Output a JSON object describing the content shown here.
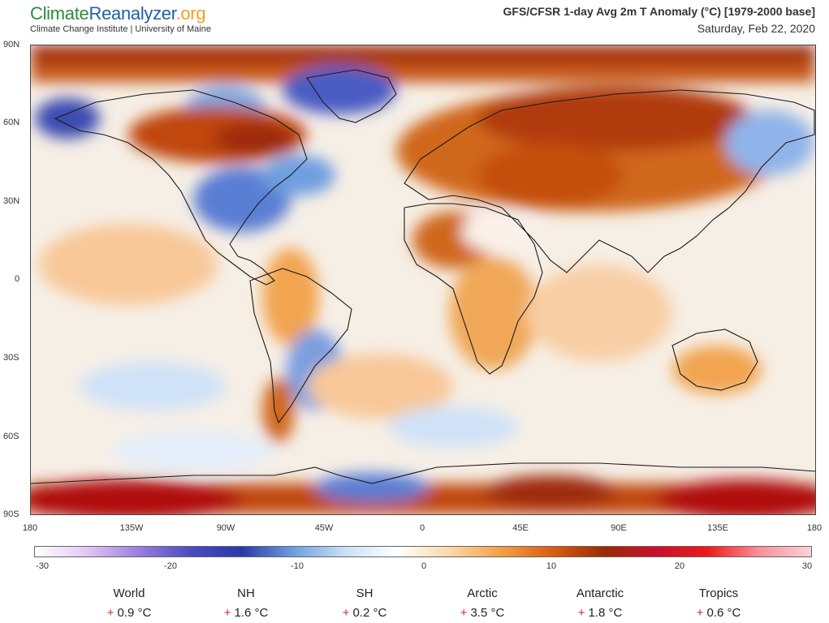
{
  "header": {
    "logo": {
      "part1": "Climate",
      "part2": "Reanalyzer",
      "part3": ".org"
    },
    "tagline": "Climate Change Institute | University of Maine",
    "title": "GFS/CFSR 1-day Avg 2m T Anomaly (°C) [1979-2000 base]",
    "date": "Saturday, Feb 22, 2020"
  },
  "map": {
    "lat_labels": [
      "90N",
      "60N",
      "30N",
      "0",
      "30S",
      "60S",
      "90S"
    ],
    "lon_labels": [
      "180",
      "135W",
      "90W",
      "45W",
      "0",
      "45E",
      "90E",
      "135E",
      "180"
    ]
  },
  "colorbar": {
    "labels": [
      "-30",
      "-20",
      "-10",
      "0",
      "10",
      "20",
      "30"
    ],
    "colors": [
      "#ffffff",
      "#e2c8f4",
      "#9a7fe0",
      "#4a4cc0",
      "#2a3aa8",
      "#6e9fe0",
      "#c9e1f8",
      "#ffffff",
      "#fbd9a8",
      "#f3a048",
      "#d95f0e",
      "#9a2a06",
      "#c8102e",
      "#ee1a1a",
      "#f8909a",
      "#fad2d8"
    ]
  },
  "stats": [
    {
      "label": "World",
      "value": "0.9 °C"
    },
    {
      "label": "NH",
      "value": "1.6 °C"
    },
    {
      "label": "SH",
      "value": "0.2 °C"
    },
    {
      "label": "Arctic",
      "value": "3.5 °C"
    },
    {
      "label": "Antarctic",
      "value": "1.8 °C"
    },
    {
      "label": "Tropics",
      "value": "0.6 °C"
    }
  ]
}
